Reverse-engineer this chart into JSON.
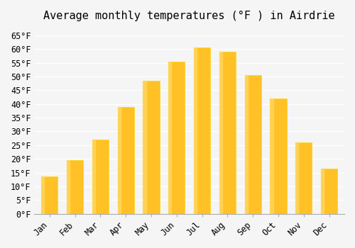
{
  "title": "Average monthly temperatures (°F ) in Airdrie",
  "months": [
    "Jan",
    "Feb",
    "Mar",
    "Apr",
    "May",
    "Jun",
    "Jul",
    "Aug",
    "Sep",
    "Oct",
    "Nov",
    "Dec"
  ],
  "values": [
    13.5,
    19.5,
    27.0,
    39.0,
    48.5,
    55.5,
    60.5,
    59.0,
    50.5,
    42.0,
    26.0,
    16.5
  ],
  "bar_color_main": "#FFC125",
  "bar_color_edge": "#FFD700",
  "ylim": [
    0,
    68
  ],
  "yticks": [
    0,
    5,
    10,
    15,
    20,
    25,
    30,
    35,
    40,
    45,
    50,
    55,
    60,
    65
  ],
  "background_color": "#f5f5f5",
  "grid_color": "#ffffff",
  "title_fontsize": 11,
  "axis_label_fontsize": 9,
  "tick_fontsize": 8.5,
  "font_family": "monospace"
}
